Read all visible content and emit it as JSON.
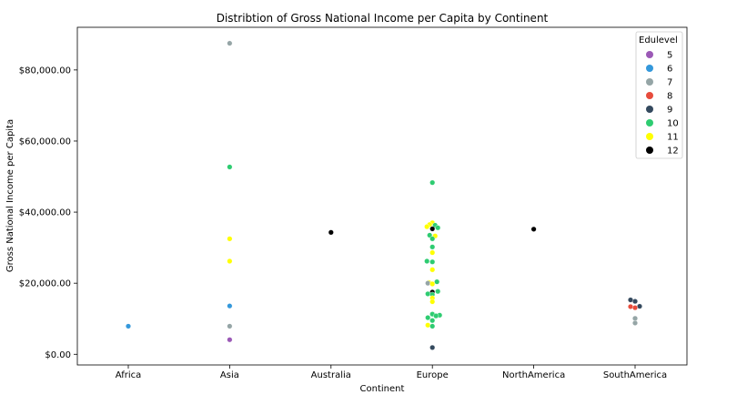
{
  "chart_data": {
    "type": "scatter",
    "title": "Distribtion of Gross National Income per Capita by Continent",
    "xlabel": "Continent",
    "ylabel": "Gross National Income per Capita",
    "categories": [
      "Africa",
      "Asia",
      "Australia",
      "Europe",
      "NorthAmerica",
      "SouthAmerica"
    ],
    "ylim": [
      -3000,
      92000
    ],
    "yticks": [
      0,
      20000,
      40000,
      60000,
      80000
    ],
    "ytick_labels": [
      "$0.00",
      "$20,000.00",
      "$40,000.00",
      "$60,000.00",
      "$80,000.00"
    ],
    "legend": {
      "title": "Edulevel",
      "placement": "top-right",
      "entries": [
        {
          "label": "5",
          "color": "#9b59b6"
        },
        {
          "label": "6",
          "color": "#3498db"
        },
        {
          "label": "7",
          "color": "#95a5a6"
        },
        {
          "label": "8",
          "color": "#e74c3c"
        },
        {
          "label": "9",
          "color": "#34495e"
        },
        {
          "label": "10",
          "color": "#2ecc71"
        },
        {
          "label": "11",
          "color": "#ffff00"
        },
        {
          "label": "12",
          "color": "#000000"
        }
      ]
    },
    "points": [
      {
        "category": "Africa",
        "value": 7900,
        "edulevel": "6",
        "offset": 0
      },
      {
        "category": "Asia",
        "value": 87500,
        "edulevel": "7",
        "offset": 0
      },
      {
        "category": "Asia",
        "value": 52700,
        "edulevel": "10",
        "offset": 0
      },
      {
        "category": "Asia",
        "value": 32500,
        "edulevel": "11",
        "offset": 0
      },
      {
        "category": "Asia",
        "value": 26200,
        "edulevel": "11",
        "offset": 0
      },
      {
        "category": "Asia",
        "value": 13600,
        "edulevel": "6",
        "offset": 0
      },
      {
        "category": "Asia",
        "value": 7900,
        "edulevel": "7",
        "offset": 0
      },
      {
        "category": "Asia",
        "value": 4100,
        "edulevel": "5",
        "offset": 0
      },
      {
        "category": "Australia",
        "value": 34300,
        "edulevel": "12",
        "offset": 0
      },
      {
        "category": "Europe",
        "value": 48300,
        "edulevel": "10",
        "offset": 0
      },
      {
        "category": "Europe",
        "value": 37000,
        "edulevel": "11",
        "offset": 0
      },
      {
        "category": "Europe",
        "value": 36500,
        "edulevel": "11",
        "offset": -3
      },
      {
        "category": "Europe",
        "value": 36300,
        "edulevel": "10",
        "offset": 3
      },
      {
        "category": "Europe",
        "value": 35900,
        "edulevel": "11",
        "offset": -6
      },
      {
        "category": "Europe",
        "value": 35600,
        "edulevel": "10",
        "offset": 6
      },
      {
        "category": "Europe",
        "value": 35300,
        "edulevel": "12",
        "offset": 0
      },
      {
        "category": "Europe",
        "value": 33500,
        "edulevel": "10",
        "offset": -3
      },
      {
        "category": "Europe",
        "value": 33300,
        "edulevel": "11",
        "offset": 3
      },
      {
        "category": "Europe",
        "value": 32500,
        "edulevel": "10",
        "offset": 0
      },
      {
        "category": "Europe",
        "value": 30200,
        "edulevel": "10",
        "offset": 0
      },
      {
        "category": "Europe",
        "value": 28600,
        "edulevel": "11",
        "offset": 0
      },
      {
        "category": "Europe",
        "value": 26200,
        "edulevel": "10",
        "offset": -6
      },
      {
        "category": "Europe",
        "value": 26000,
        "edulevel": "10",
        "offset": 0
      },
      {
        "category": "Europe",
        "value": 23800,
        "edulevel": "11",
        "offset": 0
      },
      {
        "category": "Europe",
        "value": 20400,
        "edulevel": "10",
        "offset": 5
      },
      {
        "category": "Europe",
        "value": 20200,
        "edulevel": "11",
        "offset": -4
      },
      {
        "category": "Europe",
        "value": 20000,
        "edulevel": "7",
        "offset": -5
      },
      {
        "category": "Europe",
        "value": 19800,
        "edulevel": "11",
        "offset": 0
      },
      {
        "category": "Europe",
        "value": 17700,
        "edulevel": "10",
        "offset": 6
      },
      {
        "category": "Europe",
        "value": 17500,
        "edulevel": "12",
        "offset": 0
      },
      {
        "category": "Europe",
        "value": 17000,
        "edulevel": "10",
        "offset": -5
      },
      {
        "category": "Europe",
        "value": 16800,
        "edulevel": "10",
        "offset": 0
      },
      {
        "category": "Europe",
        "value": 15800,
        "edulevel": "11",
        "offset": 0
      },
      {
        "category": "Europe",
        "value": 14800,
        "edulevel": "11",
        "offset": 0
      },
      {
        "category": "Europe",
        "value": 11300,
        "edulevel": "10",
        "offset": 0
      },
      {
        "category": "Europe",
        "value": 11000,
        "edulevel": "10",
        "offset": 8
      },
      {
        "category": "Europe",
        "value": 10800,
        "edulevel": "10",
        "offset": 4
      },
      {
        "category": "Europe",
        "value": 10300,
        "edulevel": "10",
        "offset": -5
      },
      {
        "category": "Europe",
        "value": 9500,
        "edulevel": "10",
        "offset": 0
      },
      {
        "category": "Europe",
        "value": 8200,
        "edulevel": "11",
        "offset": -5
      },
      {
        "category": "Europe",
        "value": 7900,
        "edulevel": "10",
        "offset": 0
      },
      {
        "category": "Europe",
        "value": 1900,
        "edulevel": "9",
        "offset": 0
      },
      {
        "category": "NorthAmerica",
        "value": 35200,
        "edulevel": "12",
        "offset": 0
      },
      {
        "category": "SouthAmerica",
        "value": 15300,
        "edulevel": "9",
        "offset": -5
      },
      {
        "category": "SouthAmerica",
        "value": 14900,
        "edulevel": "9",
        "offset": 0
      },
      {
        "category": "SouthAmerica",
        "value": 13500,
        "edulevel": "9",
        "offset": 5
      },
      {
        "category": "SouthAmerica",
        "value": 13400,
        "edulevel": "8",
        "offset": -5
      },
      {
        "category": "SouthAmerica",
        "value": 13100,
        "edulevel": "8",
        "offset": 0
      },
      {
        "category": "SouthAmerica",
        "value": 10100,
        "edulevel": "7",
        "offset": 0
      },
      {
        "category": "SouthAmerica",
        "value": 8800,
        "edulevel": "7",
        "offset": 0
      }
    ]
  }
}
